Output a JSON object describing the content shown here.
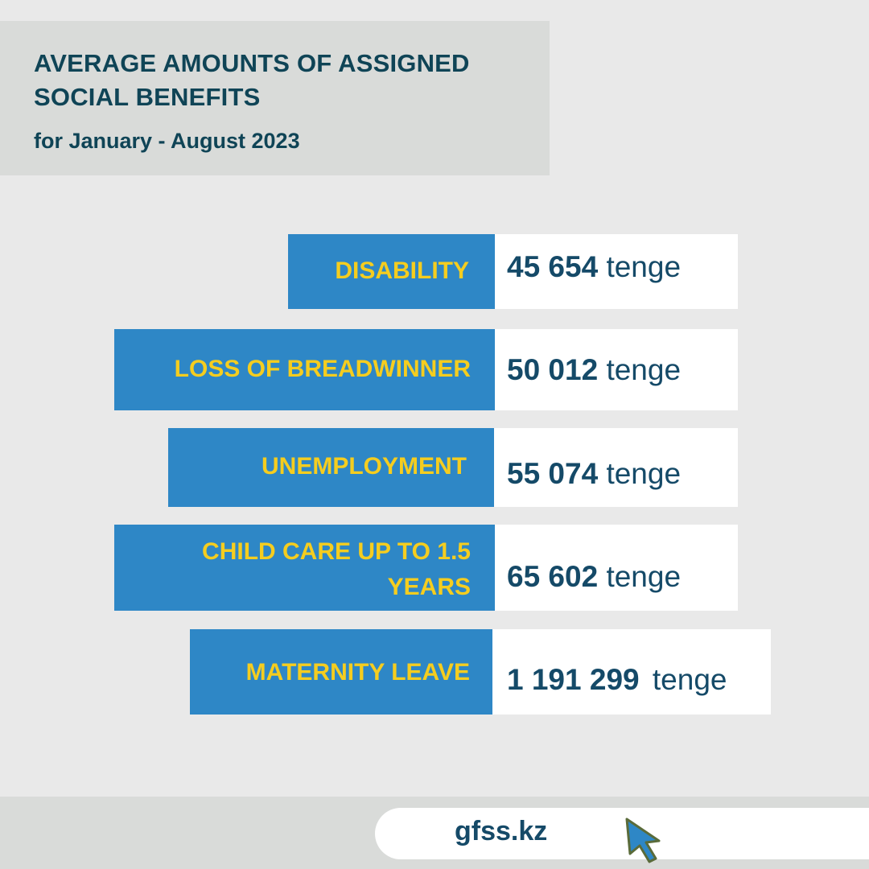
{
  "header": {
    "title": "AVERAGE AMOUNTS OF ASSIGNED\nSOCIAL BENEFITS",
    "subtitle": "for January - August 2023"
  },
  "benefits": [
    {
      "label": "DISABILITY",
      "amount": "45 654",
      "unit": "tenge"
    },
    {
      "label": "LOSS OF BREADWINNER",
      "amount": "50 012",
      "unit": "tenge"
    },
    {
      "label": "UNEMPLOYMENT",
      "amount": "55 074",
      "unit": "tenge"
    },
    {
      "label": "CHILD CARE UP TO 1.5 YEARS",
      "amount": "65 602",
      "unit": "tenge"
    },
    {
      "label": "MATERNITY LEAVE",
      "amount": "1 191 299",
      "unit": "tenge"
    }
  ],
  "footer": {
    "site": "gfss.kz",
    "icon": "cursor-arrow-icon"
  },
  "colors": {
    "background": "#e9e9e9",
    "panel": "#d9dbd9",
    "label_bg": "#2e87c6",
    "label_text": "#f5cd1f",
    "title_text": "#0f4456",
    "value_text": "#154a68"
  }
}
